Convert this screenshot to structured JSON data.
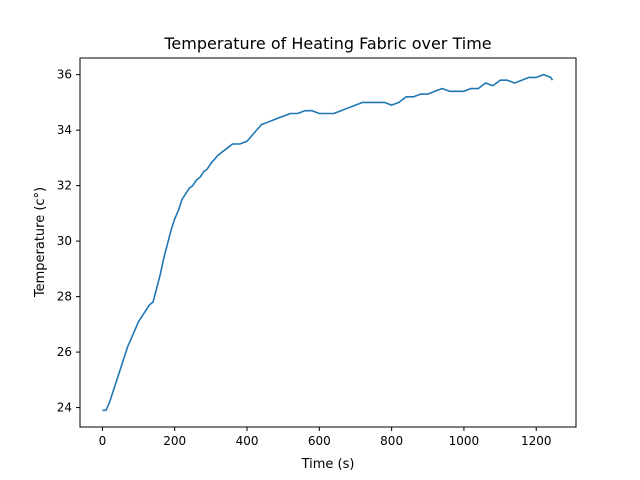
{
  "chart_data": {
    "type": "line",
    "title": "Temperature of Heating Fabric over Time",
    "xlabel": "Time (s)",
    "ylabel": "Temperature (c°)",
    "xlim": [
      -62,
      1310
    ],
    "ylim": [
      23.3,
      36.6
    ],
    "xticks": [
      0,
      200,
      400,
      600,
      800,
      1000,
      1200
    ],
    "yticks": [
      24,
      26,
      28,
      30,
      32,
      34,
      36
    ],
    "grid": false,
    "line_color": "#1f77b4",
    "series": [
      {
        "x": [
          0,
          10,
          20,
          30,
          40,
          50,
          60,
          70,
          80,
          90,
          100,
          110,
          120,
          130,
          140,
          150,
          160,
          170,
          180,
          190,
          200,
          210,
          220,
          230,
          240,
          250,
          260,
          270,
          280,
          290,
          300,
          320,
          340,
          360,
          380,
          400,
          420,
          440,
          460,
          480,
          500,
          520,
          540,
          560,
          580,
          600,
          620,
          640,
          660,
          680,
          700,
          720,
          740,
          760,
          780,
          800,
          820,
          840,
          860,
          880,
          900,
          920,
          940,
          960,
          980,
          1000,
          1020,
          1040,
          1060,
          1080,
          1100,
          1120,
          1140,
          1160,
          1180,
          1200,
          1220,
          1240,
          1245
        ],
        "y": [
          23.9,
          23.9,
          24.2,
          24.6,
          25.0,
          25.4,
          25.8,
          26.2,
          26.5,
          26.8,
          27.1,
          27.3,
          27.5,
          27.7,
          27.8,
          28.3,
          28.8,
          29.4,
          29.9,
          30.4,
          30.8,
          31.1,
          31.5,
          31.7,
          31.9,
          32.0,
          32.2,
          32.3,
          32.5,
          32.6,
          32.8,
          33.1,
          33.3,
          33.5,
          33.5,
          33.6,
          33.9,
          34.2,
          34.3,
          34.4,
          34.5,
          34.6,
          34.6,
          34.7,
          34.7,
          34.6,
          34.6,
          34.6,
          34.7,
          34.8,
          34.9,
          35.0,
          35.0,
          35.0,
          35.0,
          34.9,
          35.0,
          35.2,
          35.2,
          35.3,
          35.3,
          35.4,
          35.5,
          35.4,
          35.4,
          35.4,
          35.5,
          35.5,
          35.7,
          35.6,
          35.8,
          35.8,
          35.7,
          35.8,
          35.9,
          35.9,
          36.0,
          35.9,
          35.8
        ]
      }
    ]
  }
}
